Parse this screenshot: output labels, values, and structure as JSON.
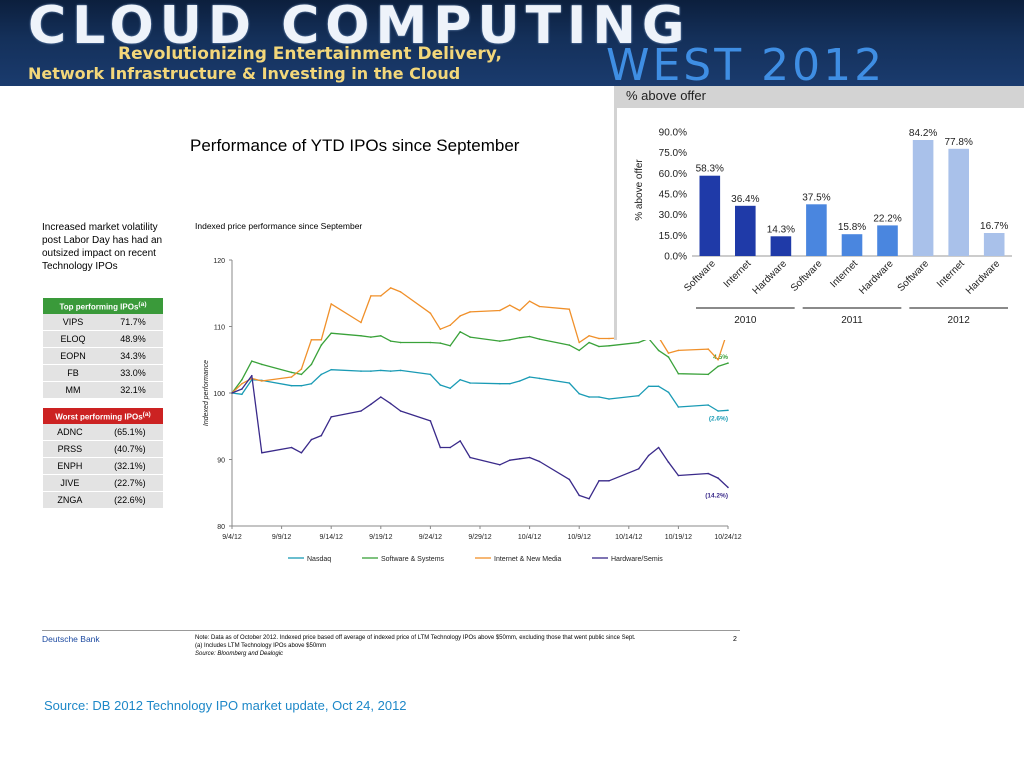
{
  "banner": {
    "title": "CLOUD COMPUTING",
    "subtitle_line1": "Revolutionizing Entertainment Delivery,",
    "subtitle_line2": "Network Infrastructure & Investing in the Cloud",
    "event": "WEST 2012"
  },
  "slide": {
    "title": "Performance of YTD IPOs since September",
    "intro": "Increased market volatility post Labor Day has had an outsized impact on recent Technology IPOs",
    "chart_subtitle": "Indexed price performance since September"
  },
  "top_performing": {
    "header": "Top performing IPOs",
    "header_note": "(a)",
    "rows": [
      {
        "ticker": "VIPS",
        "value": "71.7%"
      },
      {
        "ticker": "ELOQ",
        "value": "48.9%"
      },
      {
        "ticker": "EOPN",
        "value": "34.3%"
      },
      {
        "ticker": "FB",
        "value": "33.0%"
      },
      {
        "ticker": "MM",
        "value": "32.1%"
      }
    ]
  },
  "worst_performing": {
    "header": "Worst performing IPOs",
    "header_note": "(a)",
    "rows": [
      {
        "ticker": "ADNC",
        "value": "(65.1%)"
      },
      {
        "ticker": "PRSS",
        "value": "(40.7%)"
      },
      {
        "ticker": "ENPH",
        "value": "(32.1%)"
      },
      {
        "ticker": "JIVE",
        "value": "(22.7%)"
      },
      {
        "ticker": "ZNGA",
        "value": "(22.6%)"
      }
    ]
  },
  "colors": {
    "nasdaq": "#1a9bb5",
    "software": "#3aa23a",
    "internet": "#f0902a",
    "hardware": "#3a2a8a",
    "bar_2010": "#1f3aa8",
    "bar_2011": "#4a86df",
    "bar_2012": "#a9c1ea"
  },
  "chart_data": [
    {
      "type": "line",
      "title": "",
      "xlabel": "",
      "ylabel": "Indexed performance",
      "ylim": [
        80,
        120
      ],
      "yticks": [
        80,
        90,
        100,
        110,
        120
      ],
      "xlim": [
        "2012-09-04",
        "2012-10-24"
      ],
      "xtick_labels": [
        {
          "date": "2012-09-04",
          "label": "9/4/12"
        },
        {
          "date": "2012-09-09",
          "label": "9/9/12"
        },
        {
          "date": "2012-09-14",
          "label": "9/14/12"
        },
        {
          "date": "2012-09-19",
          "label": "9/19/12"
        },
        {
          "date": "2012-09-24",
          "label": "9/24/12"
        },
        {
          "date": "2012-09-29",
          "label": "9/29/12"
        },
        {
          "date": "2012-10-04",
          "label": "10/4/12"
        },
        {
          "date": "2012-10-09",
          "label": "10/9/12"
        },
        {
          "date": "2012-10-14",
          "label": "10/14/12"
        },
        {
          "date": "2012-10-19",
          "label": "10/19/12"
        },
        {
          "date": "2012-10-24",
          "label": "10/24/12"
        }
      ],
      "legend_position": "bottom",
      "grid": false,
      "series": [
        {
          "name": "Nasdaq",
          "color_key": "nasdaq",
          "end_label": "(2.6%)",
          "x": [
            "2012-09-04",
            "2012-09-05",
            "2012-09-06",
            "2012-09-07",
            "2012-09-10",
            "2012-09-11",
            "2012-09-12",
            "2012-09-13",
            "2012-09-14",
            "2012-09-17",
            "2012-09-18",
            "2012-09-19",
            "2012-09-20",
            "2012-09-21",
            "2012-09-24",
            "2012-09-25",
            "2012-09-26",
            "2012-09-27",
            "2012-09-28",
            "2012-10-01",
            "2012-10-02",
            "2012-10-03",
            "2012-10-04",
            "2012-10-05",
            "2012-10-08",
            "2012-10-09",
            "2012-10-10",
            "2012-10-11",
            "2012-10-12",
            "2012-10-15",
            "2012-10-16",
            "2012-10-17",
            "2012-10-18",
            "2012-10-19",
            "2012-10-22",
            "2012-10-23",
            "2012-10-24"
          ],
          "y": [
            100,
            99.8,
            102,
            101.9,
            101.1,
            101.1,
            101.4,
            102.8,
            103.5,
            103.3,
            103.3,
            103.4,
            103.3,
            103.4,
            102.8,
            101.2,
            100.7,
            102,
            101.5,
            101.4,
            101.4,
            101.8,
            102.4,
            102.2,
            101.5,
            99.9,
            99.4,
            99.4,
            99.1,
            99.6,
            101,
            101,
            100.1,
            97.9,
            98.2,
            97.3,
            97.4
          ]
        },
        {
          "name": "Software & Systems",
          "color_key": "software",
          "end_label": "4.5%",
          "x": [
            "2012-09-04",
            "2012-09-05",
            "2012-09-06",
            "2012-09-07",
            "2012-09-10",
            "2012-09-11",
            "2012-09-12",
            "2012-09-13",
            "2012-09-14",
            "2012-09-17",
            "2012-09-18",
            "2012-09-19",
            "2012-09-20",
            "2012-09-21",
            "2012-09-24",
            "2012-09-25",
            "2012-09-26",
            "2012-09-27",
            "2012-09-28",
            "2012-10-01",
            "2012-10-02",
            "2012-10-03",
            "2012-10-04",
            "2012-10-05",
            "2012-10-08",
            "2012-10-09",
            "2012-10-10",
            "2012-10-11",
            "2012-10-12",
            "2012-10-15",
            "2012-10-16",
            "2012-10-17",
            "2012-10-18",
            "2012-10-19",
            "2012-10-22",
            "2012-10-23",
            "2012-10-24"
          ],
          "y": [
            100,
            102,
            104.8,
            104.3,
            103.1,
            102.8,
            104.3,
            107.2,
            109,
            108.6,
            108.4,
            108.6,
            107.8,
            107.6,
            107.6,
            107.5,
            107.1,
            109.2,
            108.4,
            107.8,
            108,
            108.3,
            108.5,
            108.1,
            107.2,
            106.4,
            107.6,
            107,
            107.1,
            107.6,
            108.2,
            106.4,
            105.4,
            102.9,
            102.8,
            104,
            104.5
          ]
        },
        {
          "name": "Internet & New Media",
          "color_key": "internet",
          "end_label": "",
          "x": [
            "2012-09-04",
            "2012-09-05",
            "2012-09-06",
            "2012-09-07",
            "2012-09-10",
            "2012-09-11",
            "2012-09-12",
            "2012-09-13",
            "2012-09-14",
            "2012-09-17",
            "2012-09-18",
            "2012-09-19",
            "2012-09-20",
            "2012-09-21",
            "2012-09-24",
            "2012-09-25",
            "2012-09-26",
            "2012-09-27",
            "2012-09-28",
            "2012-10-01",
            "2012-10-02",
            "2012-10-03",
            "2012-10-04",
            "2012-10-05",
            "2012-10-08",
            "2012-10-09",
            "2012-10-10",
            "2012-10-11",
            "2012-10-12",
            "2012-10-15",
            "2012-10-16",
            "2012-10-17",
            "2012-10-18",
            "2012-10-19",
            "2012-10-22",
            "2012-10-23",
            "2012-10-24"
          ],
          "y": [
            100,
            101.4,
            102.2,
            101.8,
            102.4,
            103.6,
            108,
            108,
            113.4,
            110.6,
            114.6,
            114.6,
            115.8,
            115.2,
            112,
            109.6,
            110.2,
            111.6,
            112.2,
            112.4,
            113.2,
            112.4,
            113.8,
            113,
            112.6,
            107.6,
            108.6,
            108.2,
            108.2,
            108.4,
            109.8,
            108.4,
            106,
            106.4,
            106.6,
            105,
            109.5
          ]
        },
        {
          "name": "Hardware/Semis",
          "color_key": "hardware",
          "end_label": "(14.2%)",
          "x": [
            "2012-09-04",
            "2012-09-05",
            "2012-09-06",
            "2012-09-07",
            "2012-09-10",
            "2012-09-11",
            "2012-09-12",
            "2012-09-13",
            "2012-09-14",
            "2012-09-17",
            "2012-09-18",
            "2012-09-19",
            "2012-09-20",
            "2012-09-21",
            "2012-09-24",
            "2012-09-25",
            "2012-09-26",
            "2012-09-27",
            "2012-09-28",
            "2012-10-01",
            "2012-10-02",
            "2012-10-03",
            "2012-10-04",
            "2012-10-05",
            "2012-10-08",
            "2012-10-09",
            "2012-10-10",
            "2012-10-11",
            "2012-10-12",
            "2012-10-15",
            "2012-10-16",
            "2012-10-17",
            "2012-10-18",
            "2012-10-19",
            "2012-10-22",
            "2012-10-23",
            "2012-10-24"
          ],
          "y": [
            100,
            100.6,
            102.6,
            91,
            91.8,
            91,
            93,
            93.6,
            96.4,
            97.3,
            98.3,
            99.4,
            98.4,
            97.3,
            95.8,
            91.8,
            91.8,
            92.8,
            90.3,
            89.2,
            89.9,
            90.1,
            90.3,
            89.7,
            87,
            84.6,
            84.1,
            86.8,
            86.8,
            88.6,
            90.6,
            91.8,
            89.6,
            87.6,
            87.9,
            87.2,
            85.8
          ]
        }
      ]
    },
    {
      "type": "bar",
      "title": "% above offer",
      "ylabel": "% above offer",
      "ylim": [
        0,
        90
      ],
      "yticks": [
        0,
        15,
        30,
        45,
        60,
        75,
        90
      ],
      "ytick_labels": [
        "0.0%",
        "15.0%",
        "30.0%",
        "45.0%",
        "60.0%",
        "75.0%",
        "90.0%"
      ],
      "groups": [
        {
          "label": "2010",
          "color_key": "bar_2010",
          "categories": [
            "Software",
            "Internet",
            "Hardware"
          ],
          "values": [
            58.3,
            36.4,
            14.3
          ],
          "value_labels": [
            "58.3%",
            "36.4%",
            "14.3%"
          ]
        },
        {
          "label": "2011",
          "color_key": "bar_2011",
          "categories": [
            "Software",
            "Internet",
            "Hardware"
          ],
          "values": [
            37.5,
            15.8,
            22.2
          ],
          "value_labels": [
            "37.5%",
            "15.8%",
            "22.2%"
          ]
        },
        {
          "label": "2012",
          "color_key": "bar_2012",
          "categories": [
            "Software",
            "Internet",
            "Hardware"
          ],
          "values": [
            84.2,
            77.8,
            16.7
          ],
          "value_labels": [
            "84.2%",
            "77.8%",
            "16.7%"
          ]
        }
      ]
    }
  ],
  "footer": {
    "bank": "Deutsche Bank",
    "note": "Note: Data as of October 2012. Indexed price based off average of indexed price of LTM Technology IPOs above $50mm, excluding those that went public since Sept.",
    "note_a": "(a) Includes LTM Technology IPOs above $50mm",
    "source": "Source:  Bloomberg and Dealogic",
    "page_number": "2"
  },
  "source_caption": "Source: DB 2012 Technology IPO market update, Oct 24, 2012"
}
